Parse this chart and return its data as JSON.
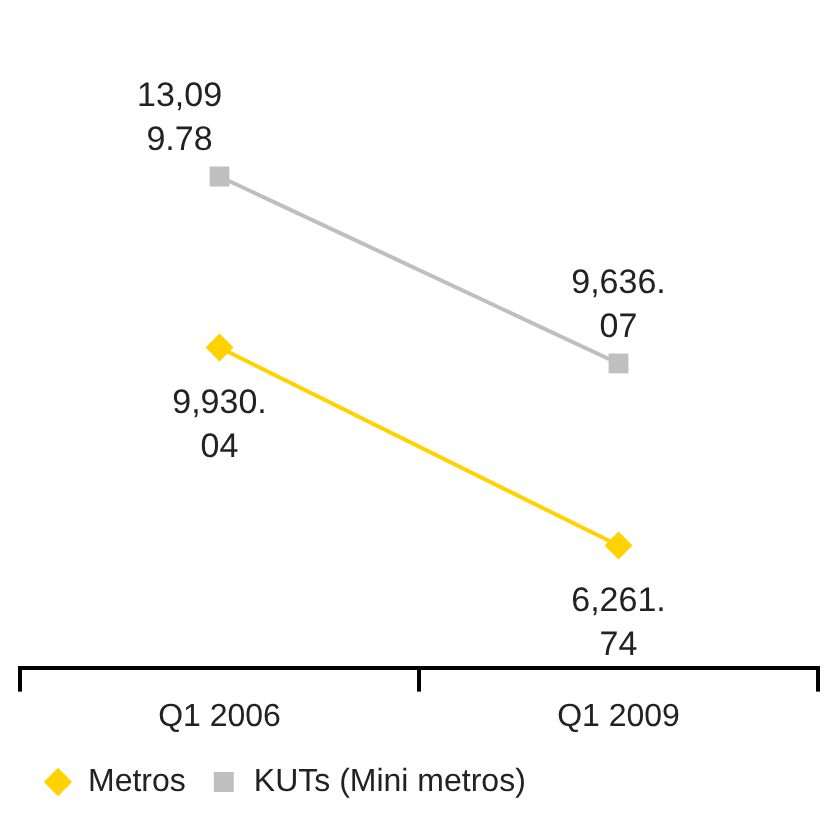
{
  "chart_data": {
    "type": "line",
    "categories": [
      "Q1 2006",
      "Q1 2009"
    ],
    "series": [
      {
        "name": "Metros",
        "color": "#ffd200",
        "marker": "diamond",
        "values": [
          9930.04,
          6261.74
        ],
        "value_labels": [
          "9,930.04",
          "6,261.74"
        ]
      },
      {
        "name": "KUTs (Mini metros)",
        "color": "#bfbfbf",
        "marker": "square",
        "values": [
          13099.78,
          9636.07
        ],
        "value_labels": [
          "13,099.78",
          "9,636.07"
        ]
      }
    ],
    "legend": "bottom",
    "grid": false,
    "line_style": "solid"
  }
}
